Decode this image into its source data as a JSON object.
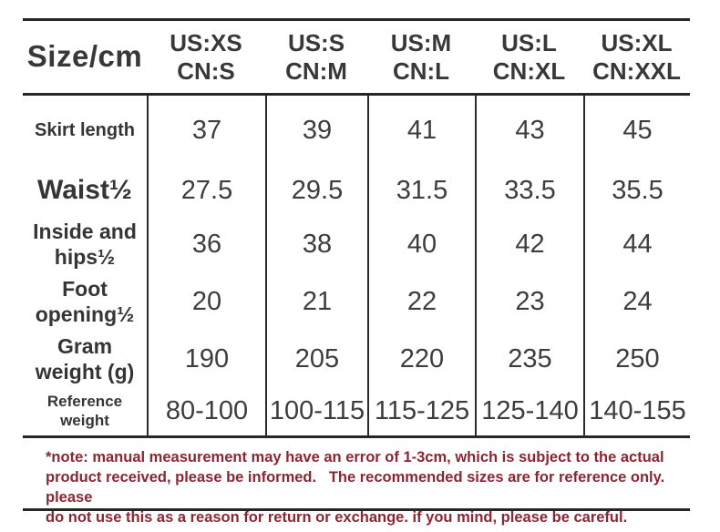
{
  "chart_data": {
    "type": "table",
    "title": "Size/cm",
    "corner_label": "Size/cm",
    "columns": [
      "US:XS\nCN:S",
      "US:S\nCN:M",
      "US:M\nCN:L",
      "US:L\nCN:XL",
      "US:XL\nCN:XXL"
    ],
    "rows": [
      {
        "label": "Skirt length",
        "values": [
          "37",
          "39",
          "41",
          "43",
          "45"
        ]
      },
      {
        "label": "Waist½",
        "values": [
          "27.5",
          "29.5",
          "31.5",
          "33.5",
          "35.5"
        ]
      },
      {
        "label": "Inside and\nhips½",
        "values": [
          "36",
          "38",
          "40",
          "42",
          "44"
        ]
      },
      {
        "label": "Foot\nopening½",
        "values": [
          "20",
          "21",
          "22",
          "23",
          "24"
        ]
      },
      {
        "label": "Gram\nweight (g)",
        "values": [
          "190",
          "205",
          "220",
          "235",
          "250"
        ]
      },
      {
        "label": "Reference weight",
        "values": [
          "80-100",
          "100-115",
          "115-125",
          "125-140",
          "140-155"
        ]
      }
    ]
  },
  "note": {
    "text": "*note: manual measurement may have an error of 1-3cm, which is subject to the actual\nproduct received, please be informed.   The recommended sizes are for reference only. please\ndo not use this as a reason for return or exchange. if you mind, please be careful.",
    "color": "#8b2632"
  },
  "colors": {
    "background": "#ffffff",
    "table_text": "#3a3a3a",
    "rule": "#262626",
    "note_red": "#8b2632"
  }
}
